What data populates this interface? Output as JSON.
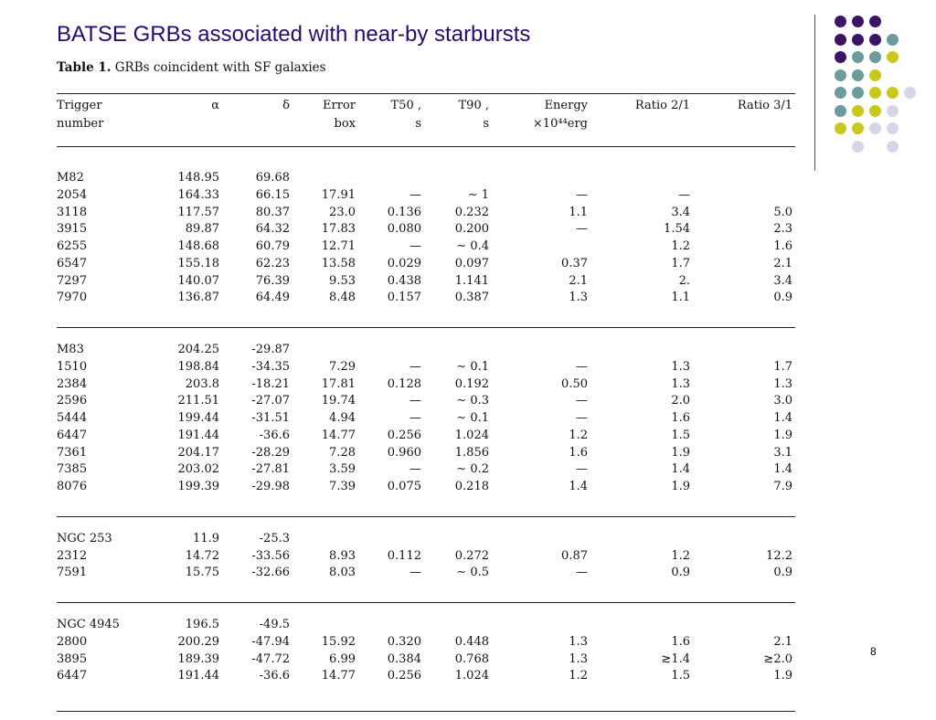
{
  "title": "BATSE GRBs associated with near-by starbursts",
  "caption": {
    "label": "Table 1.",
    "text": "GRBs coincident with SF galaxies"
  },
  "headers": [
    {
      "line1": "Trigger",
      "line2": "number"
    },
    {
      "line1": "α",
      "line2": ""
    },
    {
      "line1": "δ",
      "line2": ""
    },
    {
      "line1": "Error",
      "line2": "box"
    },
    {
      "line1": "T50 ,",
      "line2": "s"
    },
    {
      "line1": "T90 ,",
      "line2": "s"
    },
    {
      "line1": "Energy",
      "line2": "×10⁴⁴erg"
    },
    {
      "line1": "Ratio 2/1",
      "line2": ""
    },
    {
      "line1": "Ratio 3/1",
      "line2": ""
    }
  ],
  "groups": [
    {
      "galaxy": [
        "M82",
        "148.95",
        "69.68"
      ],
      "rows": [
        [
          "2054",
          "164.33",
          "66.15",
          "17.91",
          "—",
          "∼ 1",
          "—",
          "—",
          ""
        ],
        [
          "3118",
          "117.57",
          "80.37",
          "23.0",
          "0.136",
          "0.232",
          "1.1",
          "3.4",
          "5.0"
        ],
        [
          "3915",
          "89.87",
          "64.32",
          "17.83",
          "0.080",
          "0.200",
          "—",
          "1.54",
          "2.3"
        ],
        [
          "6255",
          "148.68",
          "60.79",
          "12.71",
          "—",
          "∼ 0.4",
          "",
          "1.2",
          "1.6"
        ],
        [
          "6547",
          "155.18",
          "62.23",
          "13.58",
          "0.029",
          "0.097",
          "0.37",
          "1.7",
          "2.1"
        ],
        [
          "7297",
          "140.07",
          "76.39",
          "9.53",
          "0.438",
          "1.141",
          "2.1",
          "2.",
          "3.4"
        ],
        [
          "7970",
          "136.87",
          "64.49",
          "8.48",
          "0.157",
          "0.387",
          "1.3",
          "1.1",
          "0.9"
        ]
      ]
    },
    {
      "galaxy": [
        "M83",
        "204.25",
        "-29.87"
      ],
      "rows": [
        [
          "1510",
          "198.84",
          "-34.35",
          "7.29",
          "—",
          "∼ 0.1",
          "—",
          "1.3",
          "1.7"
        ],
        [
          "2384",
          "203.8",
          "-18.21",
          "17.81",
          "0.128",
          "0.192",
          "0.50",
          "1.3",
          "1.3"
        ],
        [
          "2596",
          "211.51",
          "-27.07",
          "19.74",
          "—",
          "∼ 0.3",
          "—",
          "2.0",
          "3.0"
        ],
        [
          "5444",
          "199.44",
          "-31.51",
          "4.94",
          "—",
          "∼ 0.1",
          "—",
          "1.6",
          "1.4"
        ],
        [
          "6447",
          "191.44",
          "-36.6",
          "14.77",
          "0.256",
          "1.024",
          "1.2",
          "1.5",
          "1.9"
        ],
        [
          "7361",
          "204.17",
          "-28.29",
          "7.28",
          "0.960",
          "1.856",
          "1.6",
          "1.9",
          "3.1"
        ],
        [
          "7385",
          "203.02",
          "-27.81",
          "3.59",
          "—",
          "∼ 0.2",
          "—",
          "1.4",
          "1.4"
        ],
        [
          "8076",
          "199.39",
          "-29.98",
          "7.39",
          "0.075",
          "0.218",
          "1.4",
          "1.9",
          "7.9"
        ]
      ]
    },
    {
      "galaxy": [
        "NGC 253",
        "11.9",
        "-25.3"
      ],
      "rows": [
        [
          "2312",
          "14.72",
          "-33.56",
          "8.93",
          "0.112",
          "0.272",
          "0.87",
          "1.2",
          "12.2"
        ],
        [
          "7591",
          "15.75",
          "-32.66",
          "8.03",
          "—",
          "∼ 0.5",
          "—",
          "0.9",
          "0.9"
        ]
      ]
    },
    {
      "galaxy": [
        "NGC 4945",
        "196.5",
        "-49.5"
      ],
      "rows": [
        [
          "2800",
          "200.29",
          "-47.94",
          "15.92",
          "0.320",
          "0.448",
          "1.3",
          "1.6",
          "2.1"
        ],
        [
          "3895",
          "189.39",
          "-47.72",
          "6.99",
          "0.384",
          "0.768",
          "1.3",
          "≳1.4",
          "≳2.0"
        ],
        [
          "6447",
          "191.44",
          "-36.6",
          "14.77",
          "0.256",
          "1.024",
          "1.2",
          "1.5",
          "1.9"
        ]
      ]
    }
  ],
  "page_number": "8",
  "decoration": {
    "colors": {
      "purple": "#3b1466",
      "teal": "#6b9b9b",
      "yellow": "#c8c81e",
      "lavender": "#d6d6e6"
    }
  }
}
